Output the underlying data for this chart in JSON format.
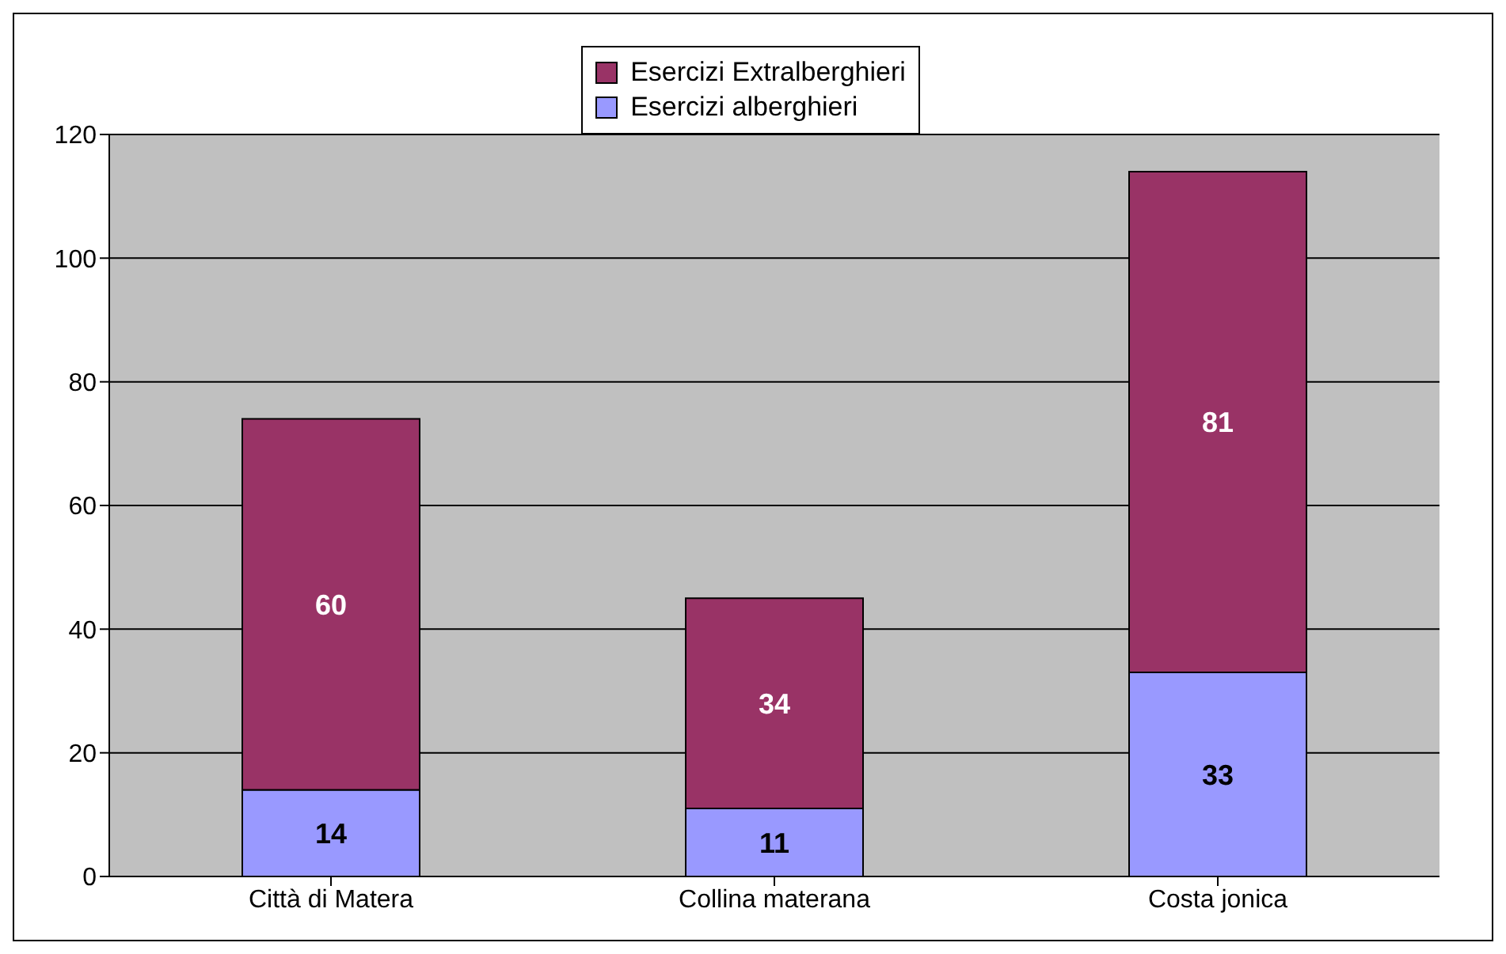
{
  "chart_data": {
    "type": "bar",
    "stacked": true,
    "categories": [
      "Città di Matera",
      "Collina materana",
      "Costa jonica"
    ],
    "series": [
      {
        "name": "Esercizi alberghieri",
        "color": "#9999ff",
        "values": [
          14,
          11,
          33
        ]
      },
      {
        "name": "Esercizi Extralberghieri",
        "color": "#993366",
        "values": [
          60,
          34,
          81
        ]
      }
    ],
    "ylim": [
      0,
      120
    ],
    "yticks": [
      0,
      20,
      40,
      60,
      80,
      100,
      120
    ],
    "grid": "y",
    "legend": "top",
    "data_labels": true
  }
}
